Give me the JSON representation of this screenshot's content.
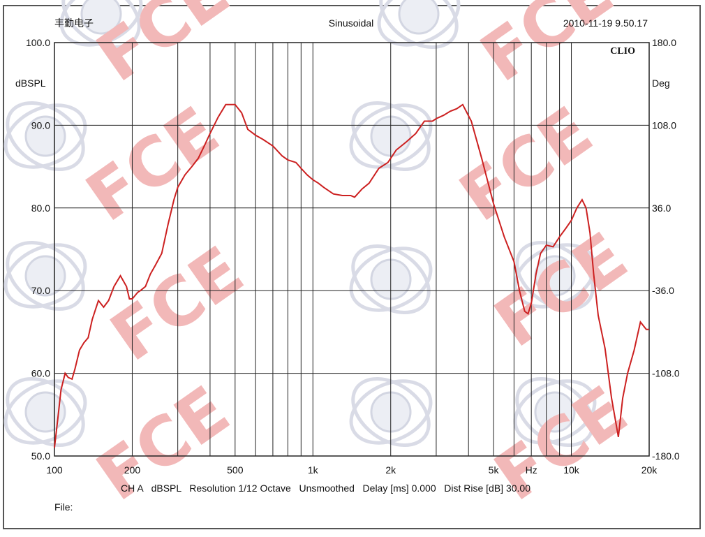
{
  "header": {
    "left": "丰勤电子",
    "center": "Sinusoidal",
    "right": "2010-11-19 9.50.17"
  },
  "brand": "CLIO",
  "watermark": "FCE",
  "left_axis": {
    "unit": "dBSPL",
    "ticks": [
      "100.0",
      "90.0",
      "80.0",
      "70.0",
      "60.0",
      "50.0"
    ]
  },
  "right_axis": {
    "unit": "Deg",
    "ticks": [
      "180.0",
      "108.0",
      "36.0",
      "-36.0",
      "-108.0",
      "-180.0"
    ]
  },
  "x_axis": {
    "ticks": [
      "100",
      "200",
      "500",
      "1k",
      "2k",
      "5k",
      "Hz",
      "10k",
      "20k"
    ]
  },
  "footer": {
    "info": "CH A   dBSPL   Resolution 1/12 Octave   Unsmoothed   Delay [ms] 0.000   Dist Rise [dB] 30.00",
    "file_label": "File:"
  },
  "colors": {
    "curve": "#cc2020",
    "grid": "#222222",
    "watermark_text": "#f2b8b8"
  },
  "chart_data": {
    "type": "line",
    "title": "Sinusoidal",
    "xlabel": "Hz",
    "ylabel": "dBSPL",
    "y2label": "Deg",
    "xscale": "log",
    "xlim": [
      100,
      20000
    ],
    "ylim": [
      50,
      100
    ],
    "y2lim": [
      -180,
      180
    ],
    "grid": true,
    "series": [
      {
        "x": [
          100,
          103,
          106,
          110,
          113,
          117,
          120,
          125,
          130,
          135,
          140,
          148,
          155,
          162,
          170,
          180,
          190,
          195,
          200,
          210,
          215,
          225,
          235,
          245,
          260,
          275,
          290,
          300,
          320,
          340,
          360,
          380,
          400,
          430,
          460,
          500,
          530,
          560,
          600,
          640,
          700,
          760,
          800,
          860,
          900,
          950,
          1000,
          1050,
          1100,
          1200,
          1300,
          1400,
          1450,
          1550,
          1650,
          1800,
          1950,
          2100,
          2300,
          2500,
          2700,
          2900,
          3000,
          3200,
          3400,
          3600,
          3800,
          4100,
          4500,
          5000,
          5500,
          6000,
          6300,
          6600,
          6800,
          7000,
          7300,
          7600,
          8000,
          8500,
          9000,
          9500,
          10000,
          10500,
          11000,
          11400,
          11800,
          12200,
          12700,
          13500,
          14300,
          15200,
          15800,
          16500,
          17500,
          18500,
          19500,
          20000
        ],
        "y": [
          51.0,
          54.5,
          58.0,
          60.0,
          59.5,
          59.3,
          60.5,
          62.8,
          63.7,
          64.3,
          66.5,
          68.8,
          68.0,
          68.8,
          70.5,
          71.8,
          70.5,
          69.0,
          69.0,
          69.8,
          70.0,
          70.5,
          72.0,
          73.0,
          74.5,
          78.0,
          81.0,
          82.5,
          84.0,
          85.0,
          86.0,
          87.5,
          89.0,
          91.0,
          92.5,
          92.5,
          91.5,
          89.5,
          88.8,
          88.3,
          87.5,
          86.3,
          85.8,
          85.5,
          84.8,
          84.0,
          83.4,
          83.0,
          82.5,
          81.7,
          81.5,
          81.5,
          81.3,
          82.3,
          83.0,
          84.8,
          85.5,
          87.0,
          88.0,
          89.0,
          90.5,
          90.5,
          90.8,
          91.2,
          91.7,
          92.0,
          92.5,
          90.5,
          86.0,
          80.5,
          76.5,
          73.5,
          70.0,
          67.5,
          67.2,
          68.5,
          72.0,
          74.5,
          75.5,
          75.3,
          76.5,
          77.5,
          78.5,
          80.0,
          81.0,
          80.0,
          77.0,
          72.0,
          67.0,
          63.0,
          57.0,
          52.3,
          57.0,
          60.0,
          62.8,
          66.2,
          65.3,
          65.3
        ]
      }
    ]
  }
}
